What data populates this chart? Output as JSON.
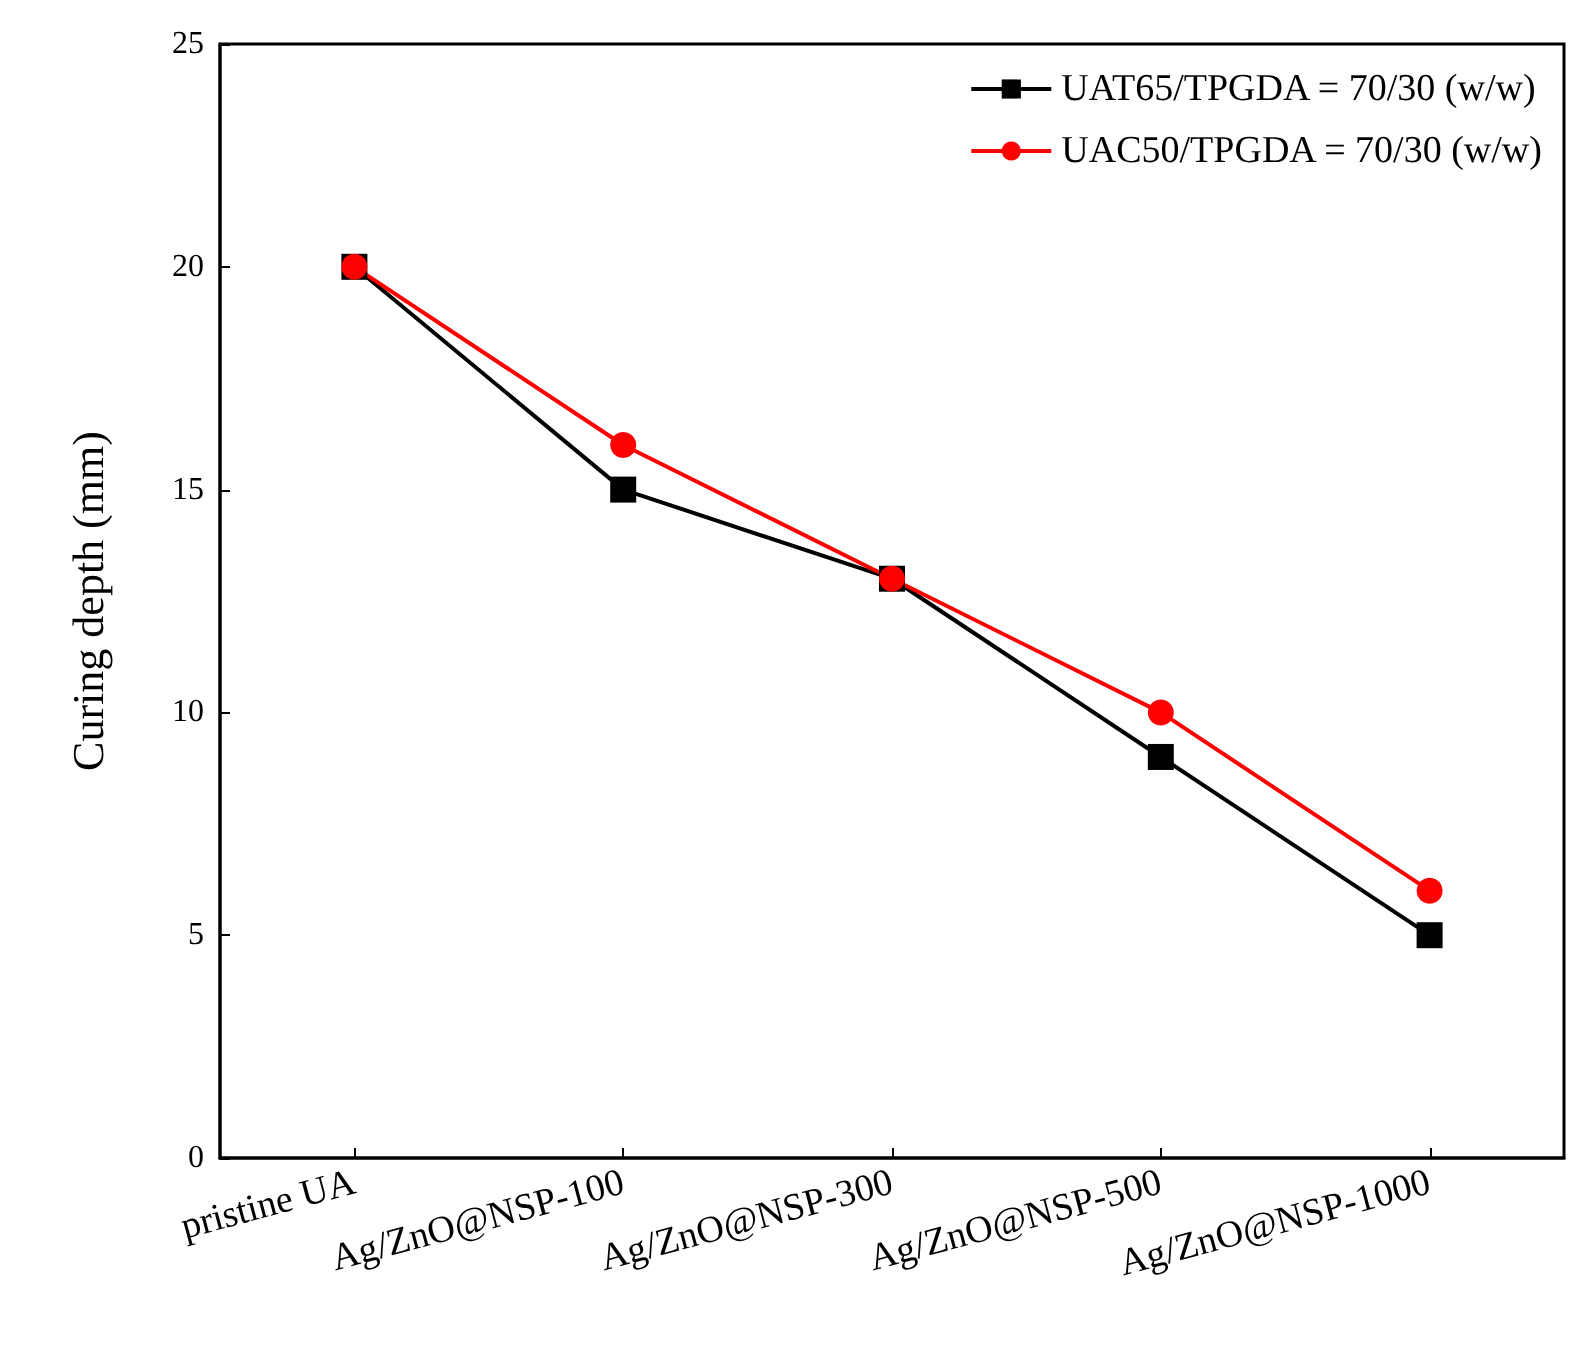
{
  "chart_data": {
    "type": "line",
    "ylabel": "Curing depth (mm)",
    "categories": [
      "pristine UA",
      "Ag/ZnO@NSP-100",
      "Ag/ZnO@NSP-300",
      "Ag/ZnO@NSP-500",
      "Ag/ZnO@NSP-1000"
    ],
    "series": [
      {
        "name": "UAT65/TPGDA = 70/30 (w/w)",
        "color": "#000000",
        "marker": "square",
        "values": [
          20,
          15,
          13,
          9,
          5
        ]
      },
      {
        "name": "UAC50/TPGDA = 70/30 (w/w)",
        "color": "#ff0000",
        "marker": "circle",
        "values": [
          20,
          16,
          13,
          10,
          6
        ]
      }
    ],
    "ylim": [
      0,
      25
    ],
    "yticks": [
      0,
      5,
      10,
      15,
      20,
      25
    ],
    "grid": false,
    "legend": "top right",
    "line_style": "solid"
  }
}
